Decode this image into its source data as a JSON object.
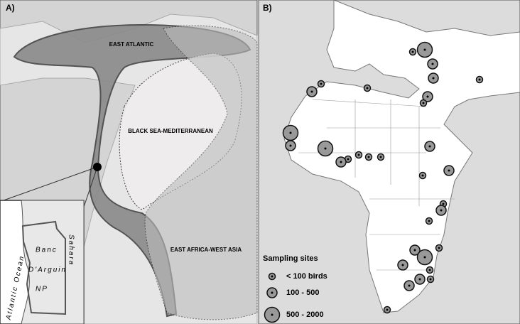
{
  "panel_a": {
    "label": "A)",
    "regions": [
      "EAST ATLANTIC",
      "BLACK  SEA-MEDITERRANEAN",
      "EAST AFRICA-WEST ASIA"
    ],
    "inset": {
      "ocean": "Atlantic Ocean",
      "desert": "Sahara",
      "park": [
        "Banc",
        "D'Arguin",
        "NP"
      ]
    }
  },
  "panel_b": {
    "label": "B)",
    "legend": {
      "title": "Sampling sites",
      "entries": [
        "< 100  birds",
        "100 - 500",
        "500 - 2000"
      ]
    }
  }
}
